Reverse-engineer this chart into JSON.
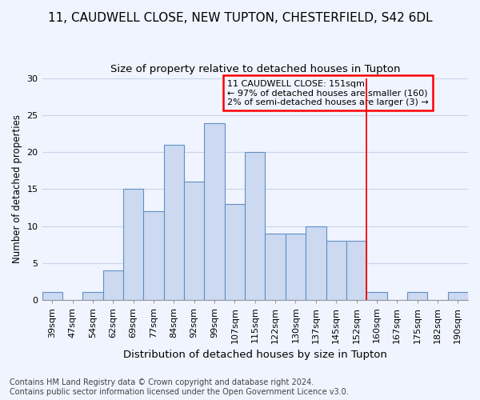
{
  "title": "11, CAUDWELL CLOSE, NEW TUPTON, CHESTERFIELD, S42 6DL",
  "subtitle": "Size of property relative to detached houses in Tupton",
  "xlabel": "Distribution of detached houses by size in Tupton",
  "ylabel": "Number of detached properties",
  "bar_labels": [
    "39sqm",
    "47sqm",
    "54sqm",
    "62sqm",
    "69sqm",
    "77sqm",
    "84sqm",
    "92sqm",
    "99sqm",
    "107sqm",
    "115sqm",
    "122sqm",
    "130sqm",
    "137sqm",
    "145sqm",
    "152sqm",
    "160sqm",
    "167sqm",
    "175sqm",
    "182sqm",
    "190sqm"
  ],
  "bar_values": [
    1,
    0,
    1,
    4,
    15,
    12,
    21,
    16,
    24,
    13,
    20,
    9,
    9,
    10,
    8,
    8,
    1,
    0,
    1,
    0,
    1
  ],
  "bar_color": "#ccd9f0",
  "bar_edge_color": "#6090c8",
  "grid_color": "#c8d4e8",
  "vline_x": 15.5,
  "vline_color": "red",
  "annotation_text": "11 CAUDWELL CLOSE: 151sqm\n← 97% of detached houses are smaller (160)\n2% of semi-detached houses are larger (3) →",
  "annotation_box_color": "red",
  "ylim": [
    0,
    30
  ],
  "yticks": [
    0,
    5,
    10,
    15,
    20,
    25,
    30
  ],
  "footer": "Contains HM Land Registry data © Crown copyright and database right 2024.\nContains public sector information licensed under the Open Government Licence v3.0.",
  "background_color": "#f0f4ff",
  "title_fontsize": 11,
  "subtitle_fontsize": 9.5,
  "ylabel_fontsize": 8.5,
  "xlabel_fontsize": 9.5,
  "tick_fontsize": 8,
  "annotation_fontsize": 8,
  "footer_fontsize": 7
}
